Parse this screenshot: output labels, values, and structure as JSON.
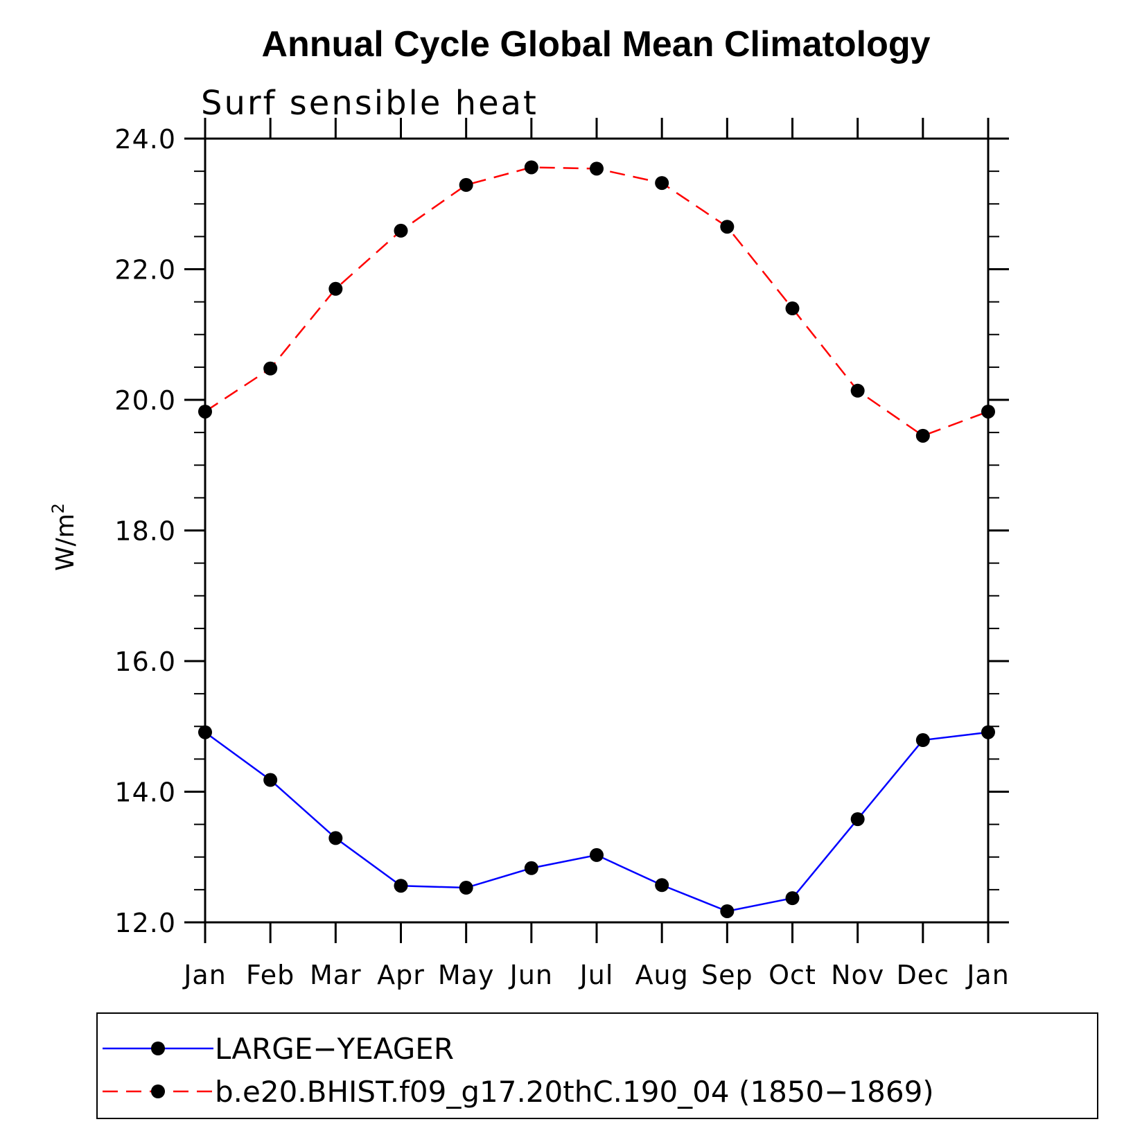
{
  "chart_data": {
    "type": "line",
    "title": "Annual Cycle Global Mean Climatology",
    "subtitle": "Surf sensible heat",
    "xlabel": "",
    "ylabel": "W/m",
    "ylabel_superscript": "2",
    "categories": [
      "Jan",
      "Feb",
      "Mar",
      "Apr",
      "May",
      "Jun",
      "Jul",
      "Aug",
      "Sep",
      "Oct",
      "Nov",
      "Dec",
      "Jan"
    ],
    "ylim": [
      12.0,
      24.0
    ],
    "yticks": [
      "12.0",
      "14.0",
      "16.0",
      "18.0",
      "20.0",
      "22.0",
      "24.0"
    ],
    "yticks_values": [
      12,
      14,
      16,
      18,
      20,
      22,
      24
    ],
    "grid": false,
    "legend_position": "bottom",
    "series": [
      {
        "name": "LARGE−YEAGER",
        "color": "#0000ff",
        "line_style": "solid",
        "marker": "filled-circle",
        "values": [
          14.91,
          14.18,
          13.29,
          12.56,
          12.53,
          12.83,
          13.03,
          12.57,
          12.17,
          12.37,
          13.58,
          14.79,
          14.91
        ]
      },
      {
        "name": "b.e20.BHIST.f09_g17.20thC.190_04 (1850−1869)",
        "color": "#ff0000",
        "line_style": "dashed",
        "marker": "filled-circle",
        "values": [
          19.82,
          20.48,
          21.7,
          22.59,
          23.29,
          23.56,
          23.54,
          23.32,
          22.65,
          21.4,
          20.14,
          19.45,
          19.82
        ]
      }
    ]
  }
}
